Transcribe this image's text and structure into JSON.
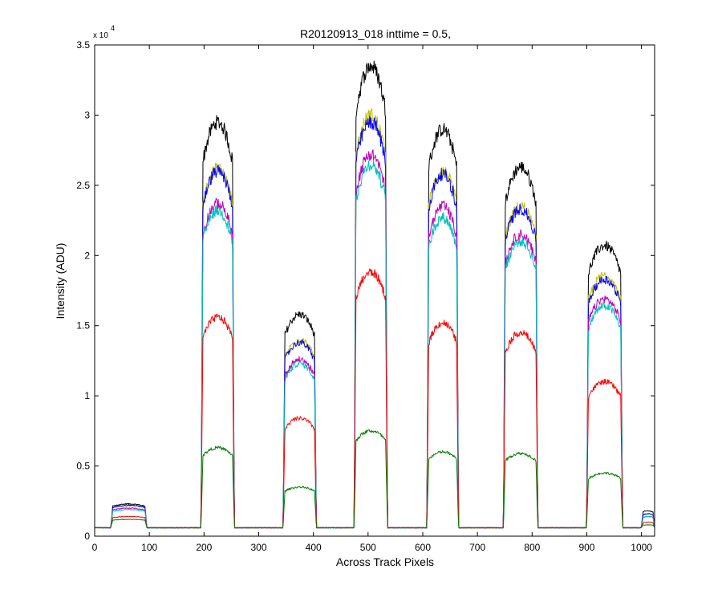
{
  "chart_data": {
    "type": "line",
    "title": "R20120913_018 inttime = 0.5,",
    "xlabel": "Across Track Pixels",
    "ylabel": "Intensity (ADU)",
    "xlim": [
      0,
      1024
    ],
    "ylim": [
      0,
      35000
    ],
    "y_exponent_label": "x 10",
    "y_exponent_power": "4",
    "xticks": [
      0,
      100,
      200,
      300,
      400,
      500,
      600,
      700,
      800,
      900,
      1000
    ],
    "xtick_labels": [
      "0",
      "100",
      "200",
      "300",
      "400",
      "500",
      "600",
      "700",
      "800",
      "900",
      "1000"
    ],
    "yticks": [
      0,
      5000,
      10000,
      15000,
      20000,
      25000,
      30000,
      35000
    ],
    "ytick_labels": [
      "0",
      "0.5",
      "1",
      "1.5",
      "2",
      "2.5",
      "3",
      "3.5"
    ],
    "grid": false,
    "baseline": 600,
    "plateaus": [
      {
        "x_start": 30,
        "x_end": 95
      },
      {
        "x_start": 195,
        "x_end": 255
      },
      {
        "x_start": 345,
        "x_end": 405
      },
      {
        "x_start": 475,
        "x_end": 535
      },
      {
        "x_start": 608,
        "x_end": 665
      },
      {
        "x_start": 748,
        "x_end": 810
      },
      {
        "x_start": 900,
        "x_end": 965
      },
      {
        "x_start": 1000,
        "x_end": 1024
      }
    ],
    "series": [
      {
        "color": "#000000",
        "peaks": [
          2300,
          29500,
          15800,
          33500,
          29000,
          26300,
          20700,
          1800
        ]
      },
      {
        "color": "#bfbf00",
        "peaks": [
          2200,
          26200,
          14000,
          30000,
          26000,
          23500,
          18600,
          1600
        ]
      },
      {
        "color": "#0000ff",
        "peaks": [
          2200,
          26000,
          13800,
          29500,
          25800,
          23300,
          18300,
          1600
        ]
      },
      {
        "color": "#bf00bf",
        "peaks": [
          2000,
          23700,
          12600,
          27200,
          23500,
          21500,
          16900,
          1400
        ]
      },
      {
        "color": "#00bfbf",
        "peaks": [
          1900,
          23200,
          12300,
          26500,
          22700,
          21000,
          16400,
          1400
        ]
      },
      {
        "color": "#ff0000",
        "peaks": [
          1400,
          15600,
          8400,
          18800,
          15200,
          14500,
          11000,
          1000
        ]
      },
      {
        "color": "#008000",
        "peaks": [
          1200,
          6300,
          3500,
          7500,
          6000,
          5900,
          4500,
          800
        ]
      }
    ]
  }
}
